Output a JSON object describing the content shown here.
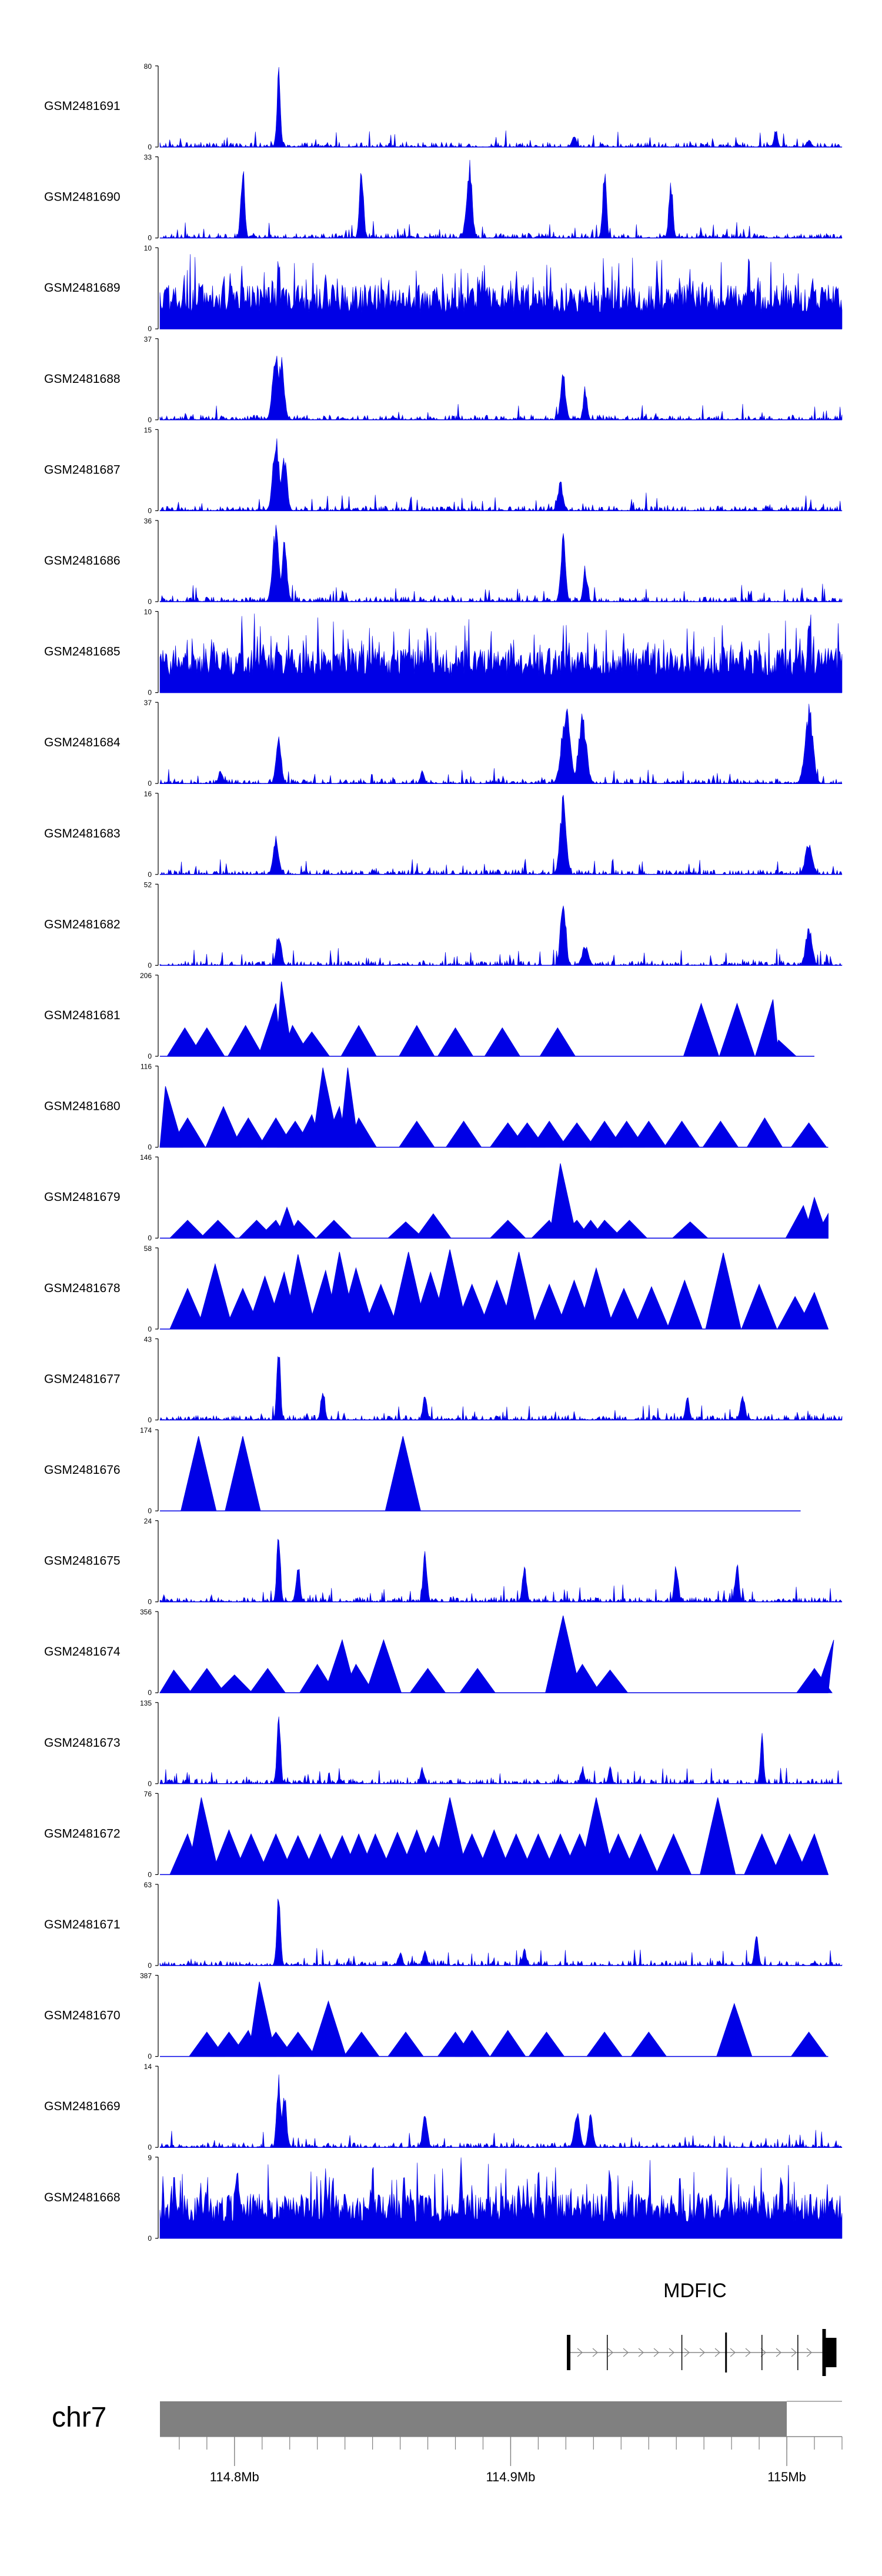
{
  "chart_data": {
    "type": "area",
    "title": "",
    "xlabel": "",
    "ylabel": "",
    "genome": {
      "chromosome": "chr7",
      "xlim": [
        114.773,
        115.02
      ],
      "units": "Mb",
      "ticks": [
        114.8,
        114.9,
        115.0
      ],
      "tick_labels": [
        "114.8Mb",
        "114.9Mb",
        "115Mb"
      ],
      "ideogram_end": 115.0
    },
    "gene": {
      "name": "MDFIC",
      "start": 114.921,
      "end": 115.015,
      "strand": "+",
      "exons": [
        114.921,
        114.942,
        114.978,
        115.015
      ],
      "intron_marks": [
        114.935,
        114.962,
        114.991,
        115.004
      ]
    },
    "tracks": [
      {
        "name": "GSM2481691",
        "ymax": 80,
        "style": "dense",
        "peaks": [
          [
            114.816,
            80,
            0.9
          ],
          [
            114.923,
            11,
            1.2
          ],
          [
            114.996,
            20,
            0.9
          ],
          [
            115.008,
            8,
            1.2
          ]
        ]
      },
      {
        "name": "GSM2481690",
        "ymax": 33,
        "style": "dense",
        "peaks": [
          [
            114.803,
            31,
            1.0
          ],
          [
            114.846,
            30,
            1.0
          ],
          [
            114.885,
            33,
            1.4
          ],
          [
            114.934,
            28,
            1.0
          ],
          [
            114.958,
            26,
            1.0
          ]
        ]
      },
      {
        "name": "GSM2481689",
        "ymax": 10,
        "style": "dense",
        "peaks": [
          [
            114.816,
            10,
            0.8
          ],
          [
            114.833,
            8,
            1.0
          ],
          [
            114.953,
            9,
            0.9
          ]
        ]
      },
      {
        "name": "GSM2481688",
        "ymax": 37,
        "style": "dense",
        "peaks": [
          [
            114.815,
            37,
            1.6
          ],
          [
            114.817,
            30,
            1.4
          ],
          [
            114.919,
            22,
            1.3
          ],
          [
            114.927,
            16,
            1.0
          ]
        ]
      },
      {
        "name": "GSM2481687",
        "ymax": 15,
        "style": "dense",
        "peaks": [
          [
            114.815,
            15,
            1.6
          ],
          [
            114.818,
            11,
            1.4
          ],
          [
            114.918,
            6,
            1.3
          ]
        ]
      },
      {
        "name": "GSM2481686",
        "ymax": 36,
        "style": "dense",
        "peaks": [
          [
            114.815,
            36,
            1.6
          ],
          [
            114.818,
            27,
            1.4
          ],
          [
            114.919,
            31,
            1.2
          ],
          [
            114.927,
            17,
            1.0
          ]
        ]
      },
      {
        "name": "GSM2481685",
        "ymax": 10,
        "style": "dense",
        "peaks": [
          [
            115.008,
            10,
            0.8
          ]
        ]
      },
      {
        "name": "GSM2481684",
        "ymax": 37,
        "style": "dense",
        "peaks": [
          [
            114.795,
            7,
            1.0
          ],
          [
            114.816,
            22,
            1.3
          ],
          [
            114.868,
            6,
            1.0
          ],
          [
            114.92,
            37,
            2.2
          ],
          [
            114.926,
            33,
            2.0
          ],
          [
            115.008,
            37,
            2.0
          ]
        ]
      },
      {
        "name": "GSM2481683",
        "ymax": 16,
        "style": "dense",
        "peaks": [
          [
            114.815,
            8,
            1.4
          ],
          [
            114.919,
            16,
            1.6
          ],
          [
            115.008,
            7,
            1.8
          ]
        ]
      },
      {
        "name": "GSM2481682",
        "ymax": 52,
        "style": "dense",
        "peaks": [
          [
            114.816,
            22,
            1.3
          ],
          [
            114.919,
            52,
            1.3
          ],
          [
            114.927,
            14,
            1.6
          ],
          [
            115.008,
            27,
            1.6
          ]
        ]
      },
      {
        "name": "GSM2481681",
        "ymax": 206,
        "style": "sparse",
        "end": 115.01,
        "peaks": [
          [
            114.782,
            0.35
          ],
          [
            114.79,
            0.35
          ],
          [
            114.804,
            0.38
          ],
          [
            114.815,
            0.65
          ],
          [
            114.817,
            0.92
          ],
          [
            114.821,
            0.38
          ],
          [
            114.828,
            0.3
          ],
          [
            114.845,
            0.38
          ],
          [
            114.866,
            0.38
          ],
          [
            114.88,
            0.35
          ],
          [
            114.897,
            0.35
          ],
          [
            114.917,
            0.35
          ],
          [
            114.969,
            0.65
          ],
          [
            114.982,
            0.65
          ],
          [
            114.995,
            0.7
          ],
          [
            114.997,
            0.2
          ]
        ]
      },
      {
        "name": "GSM2481680",
        "ymax": 116,
        "style": "sparse",
        "end": 115.015,
        "peaks": [
          [
            114.775,
            0.75
          ],
          [
            114.783,
            0.36
          ],
          [
            114.796,
            0.5
          ],
          [
            114.805,
            0.36
          ],
          [
            114.815,
            0.36
          ],
          [
            114.822,
            0.32
          ],
          [
            114.828,
            0.4
          ],
          [
            114.832,
            0.98
          ],
          [
            114.838,
            0.5
          ],
          [
            114.841,
            0.98
          ],
          [
            114.845,
            0.36
          ],
          [
            114.866,
            0.32
          ],
          [
            114.883,
            0.32
          ],
          [
            114.899,
            0.3
          ],
          [
            114.906,
            0.3
          ],
          [
            114.914,
            0.32
          ],
          [
            114.924,
            0.3
          ],
          [
            114.934,
            0.32
          ],
          [
            114.942,
            0.32
          ],
          [
            114.95,
            0.32
          ],
          [
            114.962,
            0.32
          ],
          [
            114.976,
            0.32
          ],
          [
            114.992,
            0.36
          ],
          [
            115.008,
            0.3
          ]
        ]
      },
      {
        "name": "GSM2481679",
        "ymax": 146,
        "style": "sparse",
        "end": 115.015,
        "peaks": [
          [
            114.783,
            0.22
          ],
          [
            114.794,
            0.22
          ],
          [
            114.808,
            0.22
          ],
          [
            114.815,
            0.22
          ],
          [
            114.819,
            0.38
          ],
          [
            114.823,
            0.22
          ],
          [
            114.836,
            0.22
          ],
          [
            114.862,
            0.2
          ],
          [
            114.872,
            0.3
          ],
          [
            114.899,
            0.22
          ],
          [
            114.914,
            0.22
          ],
          [
            114.918,
            0.92
          ],
          [
            114.924,
            0.22
          ],
          [
            114.929,
            0.22
          ],
          [
            114.934,
            0.22
          ],
          [
            114.943,
            0.22
          ],
          [
            114.965,
            0.2
          ],
          [
            115.006,
            0.4
          ],
          [
            115.01,
            0.5
          ],
          [
            115.015,
            0.3
          ]
        ]
      },
      {
        "name": "GSM2481678",
        "ymax": 58,
        "style": "sparse",
        "end": 115.015,
        "peaks": [
          [
            114.783,
            0.5
          ],
          [
            114.793,
            0.8
          ],
          [
            114.803,
            0.5
          ],
          [
            114.811,
            0.65
          ],
          [
            114.818,
            0.7
          ],
          [
            114.823,
            0.92
          ],
          [
            114.833,
            0.72
          ],
          [
            114.838,
            0.95
          ],
          [
            114.844,
            0.75
          ],
          [
            114.853,
            0.55
          ],
          [
            114.863,
            0.95
          ],
          [
            114.871,
            0.7
          ],
          [
            114.878,
            0.98
          ],
          [
            114.886,
            0.55
          ],
          [
            114.895,
            0.6
          ],
          [
            114.903,
            0.95
          ],
          [
            114.914,
            0.55
          ],
          [
            114.923,
            0.6
          ],
          [
            114.931,
            0.75
          ],
          [
            114.941,
            0.5
          ],
          [
            114.951,
            0.52
          ],
          [
            114.963,
            0.6
          ],
          [
            114.977,
            0.94
          ],
          [
            114.99,
            0.55
          ],
          [
            115.003,
            0.4
          ],
          [
            115.01,
            0.45
          ]
        ]
      },
      {
        "name": "GSM2481677",
        "ymax": 43,
        "style": "dense",
        "peaks": [
          [
            114.816,
            43,
            0.9
          ],
          [
            114.832,
            18,
            1.0
          ],
          [
            114.869,
            15,
            1.0
          ],
          [
            114.964,
            14,
            1.0
          ],
          [
            114.984,
            14,
            1.2
          ]
        ]
      },
      {
        "name": "GSM2481676",
        "ymax": 174,
        "style": "sparse",
        "end": 115.005,
        "peaks": [
          [
            114.787,
            0.92
          ],
          [
            114.803,
            0.92
          ],
          [
            114.861,
            0.92
          ]
        ]
      },
      {
        "name": "GSM2481675",
        "ymax": 24,
        "style": "dense",
        "peaks": [
          [
            114.816,
            24,
            0.9
          ],
          [
            114.823,
            12,
            1.0
          ],
          [
            114.869,
            16,
            1.0
          ],
          [
            114.905,
            12,
            1.0
          ],
          [
            114.96,
            12,
            1.0
          ],
          [
            114.982,
            12,
            1.0
          ]
        ]
      },
      {
        "name": "GSM2481674",
        "ymax": 356,
        "style": "sparse",
        "end": 115.015,
        "peaks": [
          [
            114.778,
            0.28
          ],
          [
            114.79,
            0.3
          ],
          [
            114.8,
            0.22
          ],
          [
            114.812,
            0.3
          ],
          [
            114.83,
            0.35
          ],
          [
            114.839,
            0.65
          ],
          [
            114.844,
            0.35
          ],
          [
            114.854,
            0.65
          ],
          [
            114.87,
            0.3
          ],
          [
            114.888,
            0.3
          ],
          [
            114.919,
            0.95
          ],
          [
            114.926,
            0.35
          ],
          [
            114.936,
            0.28
          ],
          [
            115.01,
            0.3
          ],
          [
            115.017,
            0.65
          ]
        ]
      },
      {
        "name": "GSM2481673",
        "ymax": 135,
        "style": "dense",
        "peaks": [
          [
            114.816,
            135,
            0.9
          ],
          [
            114.868,
            28,
            1.0
          ],
          [
            114.926,
            30,
            1.0
          ],
          [
            114.936,
            36,
            0.8
          ],
          [
            114.991,
            105,
            0.8
          ]
        ]
      },
      {
        "name": "GSM2481672",
        "ymax": 76,
        "style": "sparse",
        "end": 115.015,
        "peaks": [
          [
            114.783,
            0.5
          ],
          [
            114.788,
            0.95
          ],
          [
            114.798,
            0.55
          ],
          [
            114.806,
            0.5
          ],
          [
            114.815,
            0.5
          ],
          [
            114.823,
            0.48
          ],
          [
            114.831,
            0.5
          ],
          [
            114.839,
            0.48
          ],
          [
            114.845,
            0.5
          ],
          [
            114.851,
            0.5
          ],
          [
            114.859,
            0.52
          ],
          [
            114.866,
            0.55
          ],
          [
            114.872,
            0.48
          ],
          [
            114.878,
            0.95
          ],
          [
            114.886,
            0.5
          ],
          [
            114.894,
            0.55
          ],
          [
            114.902,
            0.5
          ],
          [
            114.91,
            0.5
          ],
          [
            114.918,
            0.5
          ],
          [
            114.925,
            0.5
          ],
          [
            114.931,
            0.95
          ],
          [
            114.939,
            0.5
          ],
          [
            114.947,
            0.5
          ],
          [
            114.959,
            0.5
          ],
          [
            114.975,
            0.95
          ],
          [
            114.991,
            0.5
          ],
          [
            115.001,
            0.5
          ],
          [
            115.01,
            0.5
          ]
        ]
      },
      {
        "name": "GSM2481671",
        "ymax": 63,
        "style": "dense",
        "peaks": [
          [
            114.816,
            63,
            0.9
          ],
          [
            114.86,
            12,
            1.0
          ],
          [
            114.869,
            14,
            1.0
          ],
          [
            114.905,
            14,
            1.0
          ],
          [
            114.989,
            26,
            1.0
          ]
        ]
      },
      {
        "name": "GSM2481670",
        "ymax": 387,
        "style": "sparse",
        "end": 115.015,
        "peaks": [
          [
            114.79,
            0.3
          ],
          [
            114.798,
            0.3
          ],
          [
            114.805,
            0.32
          ],
          [
            114.809,
            0.92
          ],
          [
            114.815,
            0.3
          ],
          [
            114.823,
            0.3
          ],
          [
            114.834,
            0.68
          ],
          [
            114.846,
            0.3
          ],
          [
            114.862,
            0.3
          ],
          [
            114.88,
            0.3
          ],
          [
            114.886,
            0.32
          ],
          [
            114.899,
            0.32
          ],
          [
            114.913,
            0.3
          ],
          [
            114.934,
            0.3
          ],
          [
            114.95,
            0.3
          ],
          [
            114.981,
            0.65
          ],
          [
            115.008,
            0.3
          ]
        ]
      },
      {
        "name": "GSM2481669",
        "ymax": 14,
        "style": "dense",
        "peaks": [
          [
            114.816,
            14,
            1.0
          ],
          [
            114.818,
            10,
            1.2
          ],
          [
            114.869,
            6,
            1.2
          ],
          [
            114.924,
            7,
            1.4
          ],
          [
            114.929,
            6,
            1.2
          ]
        ]
      },
      {
        "name": "GSM2481668",
        "ymax": 9,
        "style": "dense",
        "peaks": [
          [
            114.801,
            9,
            0.8
          ],
          [
            114.833,
            9,
            0.8
          ],
          [
            114.882,
            9,
            0.8
          ],
          [
            114.936,
            9,
            0.8
          ],
          [
            114.998,
            9,
            0.8
          ]
        ]
      }
    ]
  },
  "colors": {
    "signal": "#0000e6",
    "axis": "#000000",
    "ideogram": "#808080",
    "gene": "#000000",
    "intron": "#888888"
  }
}
